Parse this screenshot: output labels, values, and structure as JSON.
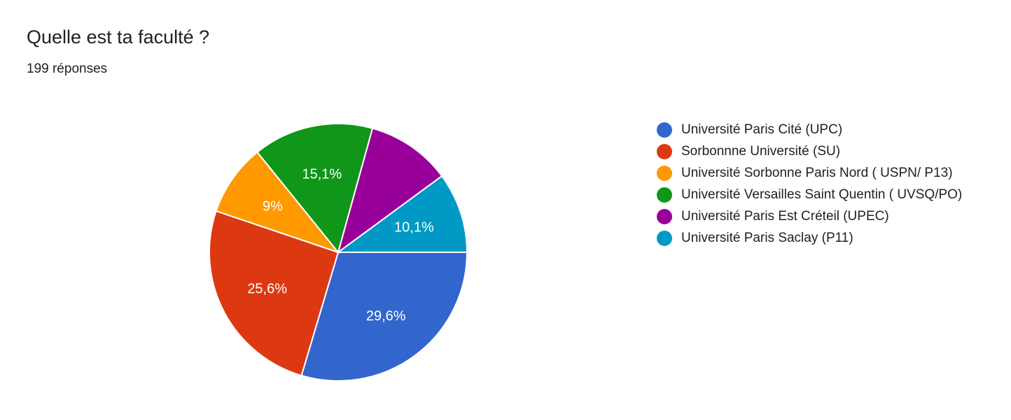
{
  "question": {
    "title": "Quelle est ta faculté ?",
    "response_count": "199 réponses"
  },
  "chart_data": {
    "type": "pie",
    "total": 199,
    "slices": [
      {
        "label": "Université Paris Cité (UPC)",
        "percent": 29.6,
        "percent_label": "29,6%",
        "color": "#3366cc"
      },
      {
        "label": "Sorbonnne Université (SU)",
        "percent": 25.6,
        "percent_label": "25,6%",
        "color": "#dc3912"
      },
      {
        "label": "Université Sorbonne Paris Nord ( USPN/ P13)",
        "percent": 9.0,
        "percent_label": "9%",
        "color": "#ff9900"
      },
      {
        "label": "Université Versailles Saint Quentin ( UVSQ/PO)",
        "percent": 15.1,
        "percent_label": "15,1%",
        "color": "#109618"
      },
      {
        "label": "Université Paris Est Créteil (UPEC)",
        "percent": 10.6,
        "percent_label": "",
        "color": "#990099"
      },
      {
        "label": "Université Paris Saclay (P11)",
        "percent": 10.1,
        "percent_label": "10,1%",
        "color": "#0099c6"
      }
    ],
    "legend_position": "right"
  }
}
